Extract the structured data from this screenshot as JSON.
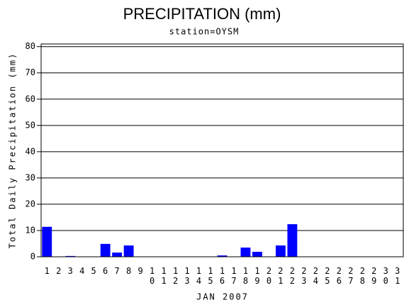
{
  "chart_data": {
    "type": "bar",
    "title": "PRECIPITATION (mm)",
    "subtitle": "station=OYSM",
    "x_label": "JAN 2007",
    "y_label": "Total Daily Precipitation (mm)",
    "categories": [
      "1",
      "2",
      "3",
      "4",
      "5",
      "6",
      "7",
      "8",
      "9",
      "10",
      "11",
      "12",
      "13",
      "14",
      "15",
      "16",
      "17",
      "18",
      "19",
      "20",
      "21",
      "22",
      "23",
      "24",
      "25",
      "26",
      "27",
      "28",
      "29",
      "30",
      "31"
    ],
    "values": [
      11.4,
      0,
      0.3,
      0,
      0,
      4.9,
      1.6,
      4.3,
      0,
      0,
      0,
      0,
      0,
      0,
      0,
      0.5,
      0,
      3.5,
      1.9,
      0,
      4.3,
      12.4,
      0,
      0,
      0,
      0,
      0,
      0,
      0,
      0,
      0
    ],
    "color": "#0000ff",
    "ylim": [
      0,
      81
    ],
    "yticks": [
      0,
      10,
      20,
      30,
      40,
      50,
      60,
      70,
      80
    ],
    "grid": true
  }
}
